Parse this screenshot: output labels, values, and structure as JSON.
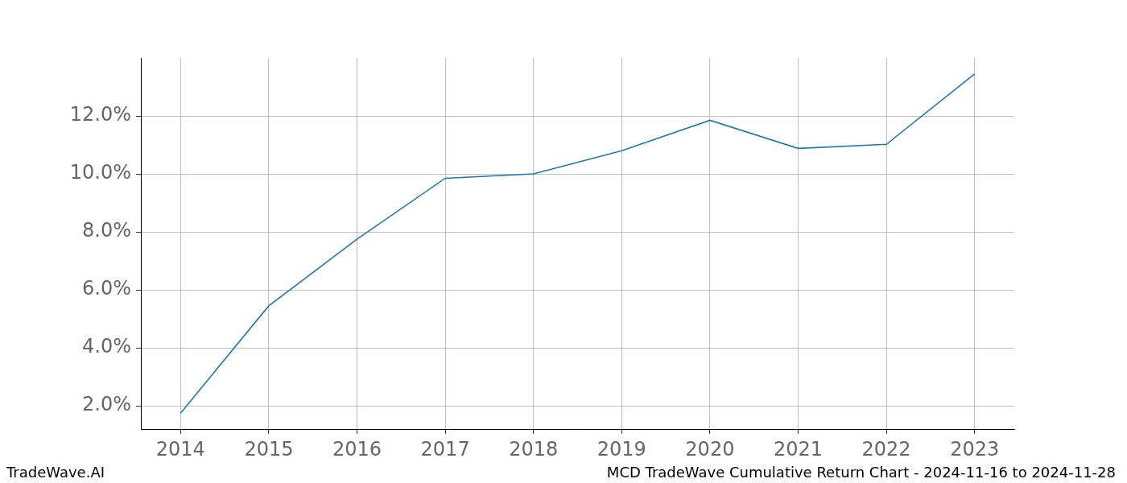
{
  "chart_data": {
    "type": "line",
    "x": [
      2014,
      2015,
      2016,
      2017,
      2018,
      2019,
      2020,
      2021,
      2022,
      2023
    ],
    "series": [
      {
        "color": "#1f77b4",
        "marker": "none",
        "line_style": "solid",
        "values": [
          1.75,
          5.45,
          7.75,
          9.85,
          10.0,
          10.8,
          11.85,
          10.88,
          11.02,
          13.45
        ]
      }
    ],
    "xlim": [
      2013.55,
      2023.45
    ],
    "xticks": [
      2014,
      2015,
      2016,
      2017,
      2018,
      2019,
      2020,
      2021,
      2022,
      2023
    ],
    "ylim": [
      1.2,
      14.0
    ],
    "yticks": [
      {
        "value": 2,
        "label": "2.0%"
      },
      {
        "value": 4,
        "label": "4.0%"
      },
      {
        "value": 6,
        "label": "6.0%"
      },
      {
        "value": 8,
        "label": "8.0%"
      },
      {
        "value": 10,
        "label": "10.0%"
      },
      {
        "value": 12,
        "label": "12.0%"
      }
    ],
    "grid": true
  },
  "footer": {
    "left": "TradeWave.AI",
    "right": "MCD TradeWave Cumulative Return Chart - 2024-11-16 to 2024-11-28"
  }
}
